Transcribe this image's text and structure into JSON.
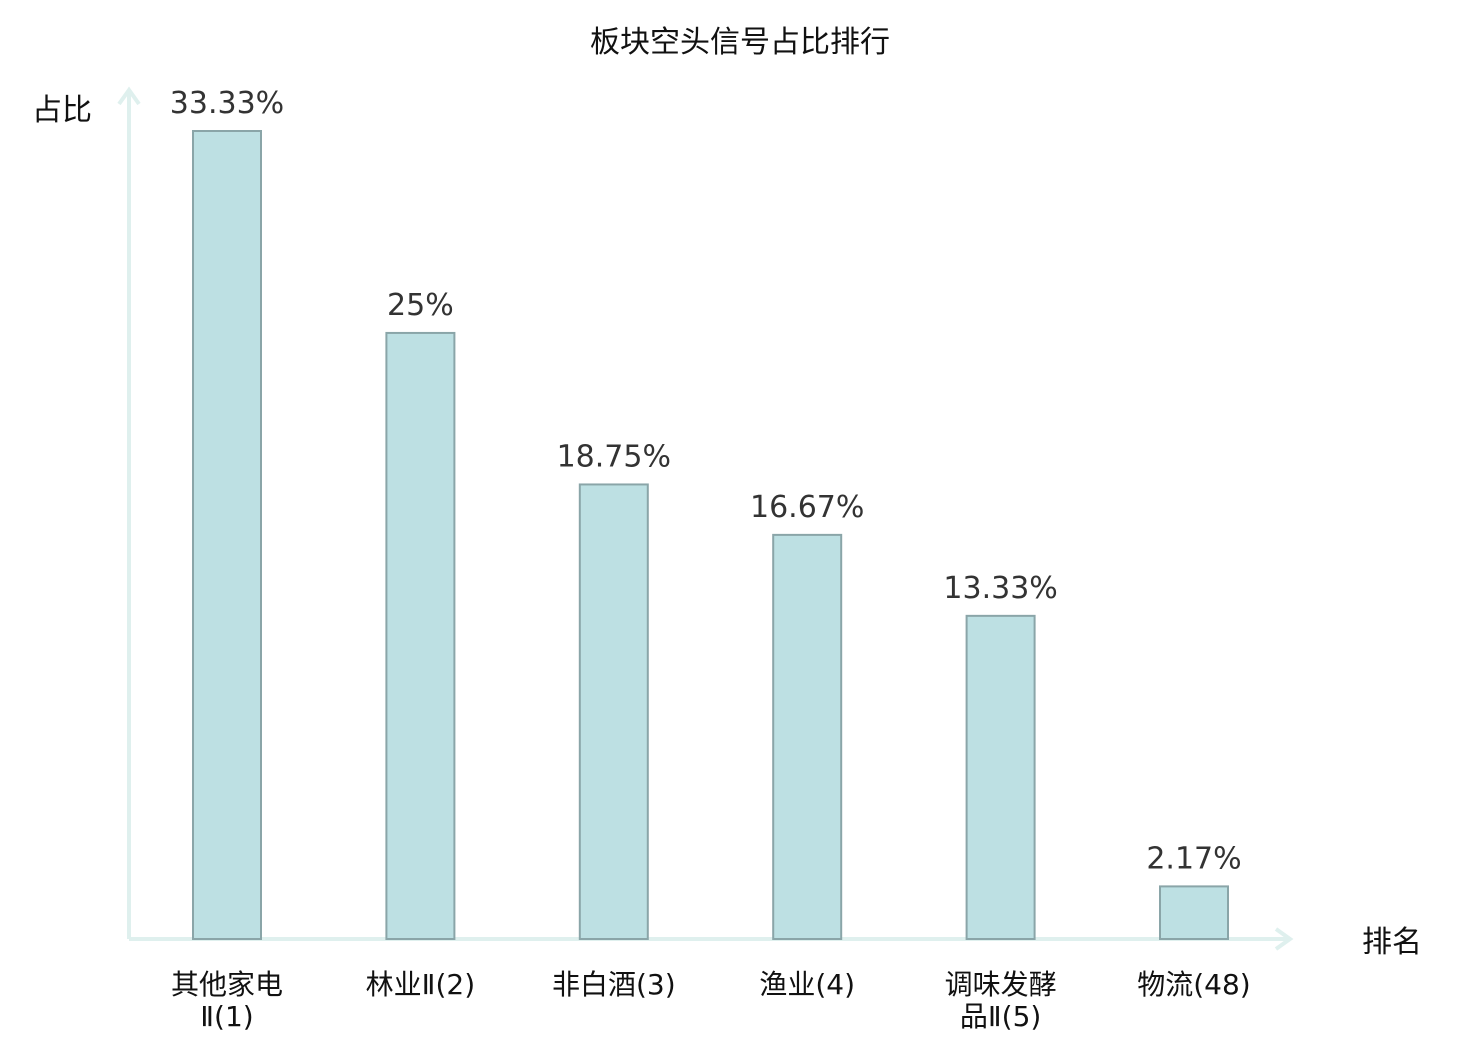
{
  "chart_data": {
    "type": "bar",
    "title": "板块空头信号占比排行",
    "ylabel": "占比",
    "xlabel": "排名",
    "ylim": [
      0,
      35
    ],
    "grid": false,
    "categories": [
      [
        "其他家电",
        "Ⅱ(1)"
      ],
      [
        "林业Ⅱ(2)"
      ],
      [
        "非白酒(3)"
      ],
      [
        "渔业(4)"
      ],
      [
        "调味发酵",
        "品Ⅱ(5)"
      ],
      [
        "物流(48)"
      ]
    ],
    "values": [
      33.33,
      25,
      18.75,
      16.67,
      13.33,
      2.17
    ],
    "data_labels": [
      "33.33%",
      "25%",
      "18.75%",
      "16.67%",
      "13.33%",
      "2.17%"
    ],
    "highlight_index": 5,
    "colors": {
      "bar_fill": "#bde0e3",
      "bar_stroke": "#8aa5a8",
      "axis": "#dff0ee",
      "highlight_text": "#e02020",
      "text": "#111111"
    }
  }
}
